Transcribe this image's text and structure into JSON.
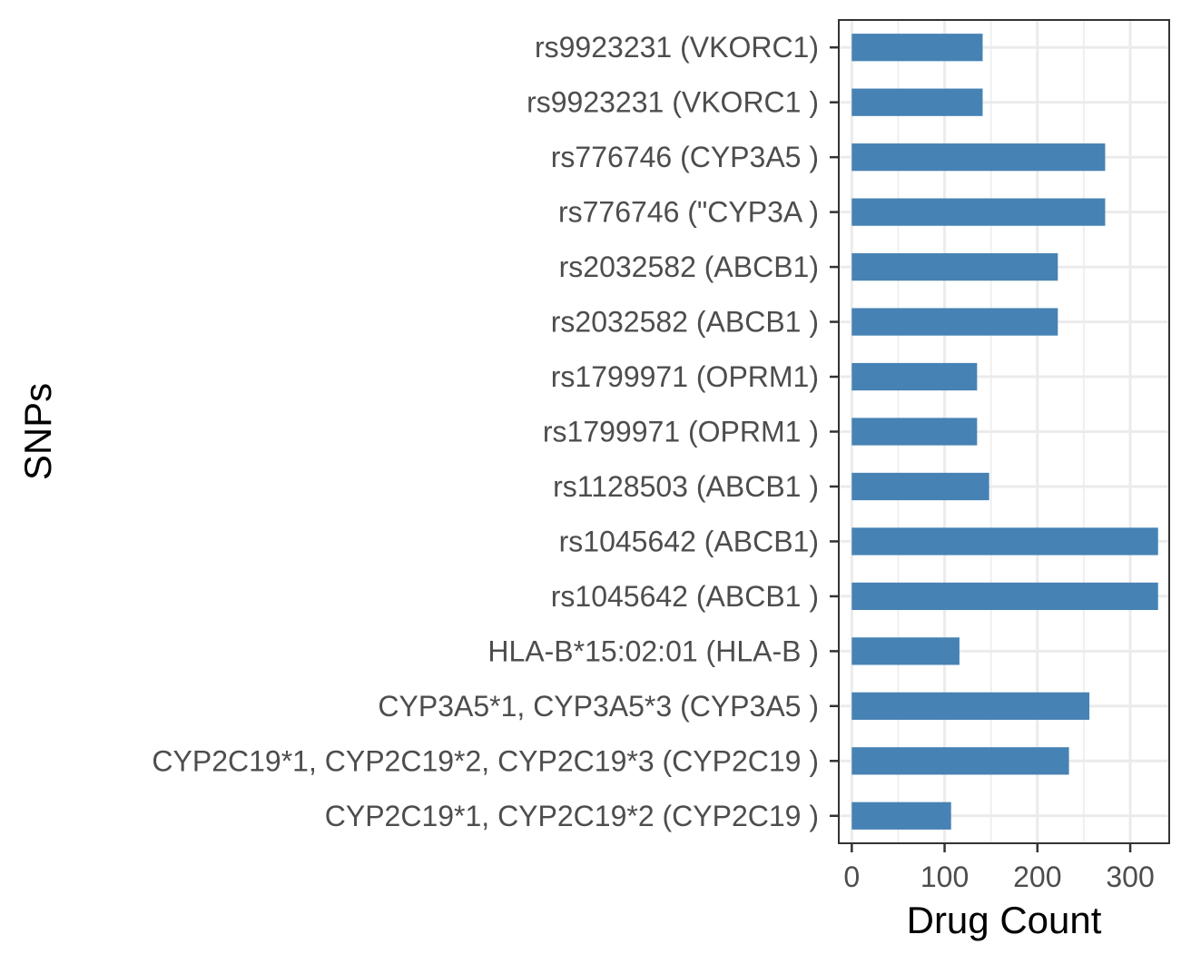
{
  "chart_data": {
    "type": "bar",
    "orientation": "horizontal",
    "xlabel": "Drug Count",
    "ylabel": "SNPs",
    "xlim": [
      -14,
      342
    ],
    "xticks": [
      0,
      100,
      200,
      300
    ],
    "grid": true,
    "bar_color": "#4682b4",
    "categories": [
      "rs9923231 (VKORC1)",
      "rs9923231 (VKORC1 )",
      "rs776746 (CYP3A5 )",
      "rs776746 (\"CYP3A )",
      "rs2032582 (ABCB1)",
      "rs2032582 (ABCB1 )",
      "rs1799971 (OPRM1)",
      "rs1799971 (OPRM1 )",
      "rs1128503 (ABCB1 )",
      "rs1045642 (ABCB1)",
      "rs1045642 (ABCB1 )",
      "HLA-B*15:02:01 (HLA-B )",
      "CYP3A5*1, CYP3A5*3 (CYP3A5 )",
      "CYP2C19*1, CYP2C19*2, CYP2C19*3 (CYP2C19 )",
      "CYP2C19*1, CYP2C19*2 (CYP2C19 )"
    ],
    "values": [
      141,
      141,
      273,
      273,
      222,
      222,
      135,
      135,
      148,
      330,
      330,
      116,
      256,
      234,
      107
    ]
  }
}
